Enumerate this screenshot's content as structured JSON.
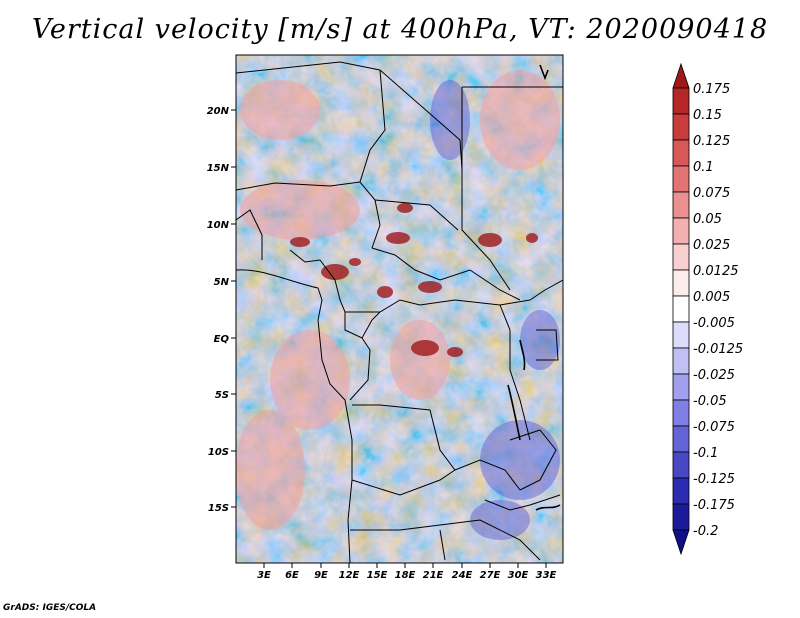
{
  "title": "Vertical velocity [m/s] at 400hPa, VT: 2020090418",
  "footer": "GrADS: IGES/COLA",
  "lat_labels": [
    "20N",
    "15N",
    "10N",
    "5N",
    "EQ",
    "5S",
    "10S",
    "15S"
  ],
  "lon_labels": [
    "3E",
    "6E",
    "9E",
    "12E",
    "15E",
    "18E",
    "21E",
    "24E",
    "27E",
    "30E",
    "33E"
  ],
  "colorbar": {
    "labels": [
      "0.175",
      "0.15",
      "0.125",
      "0.1",
      "0.075",
      "0.05",
      "0.025",
      "0.0125",
      "0.005",
      "-0.005",
      "-0.0125",
      "-0.025",
      "-0.05",
      "-0.075",
      "-0.1",
      "-0.125",
      "-0.175",
      "-0.2"
    ],
    "colors": [
      "#a01818",
      "#b62626",
      "#c83c3c",
      "#d85858",
      "#e27474",
      "#eb9090",
      "#f3b0b0",
      "#f9d0d0",
      "#fdecec",
      "#ffffff",
      "#dcdcfb",
      "#c0c0f5",
      "#a0a0ee",
      "#8080e4",
      "#6464d6",
      "#4848c6",
      "#2c2cb0",
      "#1a1a9a",
      "#10108a"
    ]
  }
}
